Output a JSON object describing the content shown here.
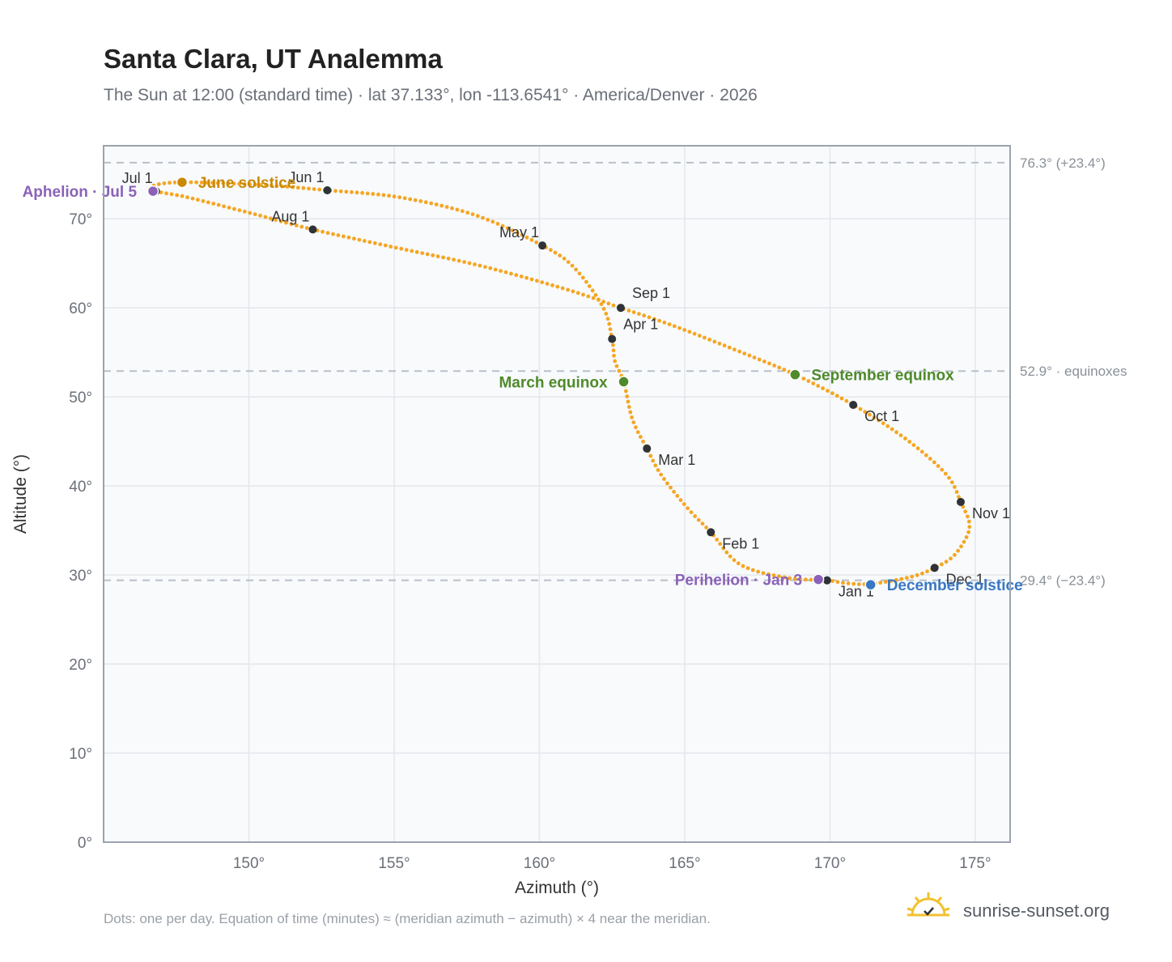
{
  "title": "Santa Clara, UT Analemma",
  "subtitle": "The Sun at 12:00 (standard time) · lat 37.133°, lon -113.6541° · America/Denver · 2026",
  "footnote": "Dots: one per day. Equation of time (minutes) ≈ (meridian azimuth − azimuth) × 4 near the meridian.",
  "brand": "sunrise-sunset.org",
  "colors": {
    "curve": "#f5a623",
    "month_dot": "#2f3237",
    "solstice_june": "#c98a06",
    "equinox": "#4f8a2b",
    "solstice_december": "#3a78c3",
    "apsis": "#8b62b8",
    "grid": "#e3e7ec",
    "plot_bg": "#f8fafc",
    "ref_line": "#b8c0c9"
  },
  "chart_data": {
    "type": "scatter",
    "xlabel": "Azimuth (°)",
    "ylabel": "Altitude (°)",
    "xlim": [
      145,
      176.2
    ],
    "ylim": [
      0,
      78.2
    ],
    "x_ticks": [
      {
        "value": 150,
        "label": "150°"
      },
      {
        "value": 155,
        "label": "155°"
      },
      {
        "value": 160,
        "label": "160°"
      },
      {
        "value": 165,
        "label": "165°"
      },
      {
        "value": 170,
        "label": "170°"
      },
      {
        "value": 175,
        "label": "175°"
      }
    ],
    "y_ticks": [
      {
        "value": 0,
        "label": "0°"
      },
      {
        "value": 10,
        "label": "10°"
      },
      {
        "value": 20,
        "label": "20°"
      },
      {
        "value": 30,
        "label": "30°"
      },
      {
        "value": 40,
        "label": "40°"
      },
      {
        "value": 50,
        "label": "50°"
      },
      {
        "value": 60,
        "label": "60°"
      },
      {
        "value": 70,
        "label": "70°"
      }
    ],
    "grid": true,
    "reference_lines": [
      {
        "value": 76.3,
        "label": "76.3° (+23.4°)"
      },
      {
        "value": 52.9,
        "label": "52.9° · equinoxes"
      },
      {
        "value": 29.4,
        "label": "29.4° (−23.4°)"
      }
    ],
    "path": [
      {
        "az": 169.9,
        "alt": 29.4
      },
      {
        "az": 168.5,
        "alt": 29.7
      },
      {
        "az": 166.9,
        "alt": 31.2
      },
      {
        "az": 165.9,
        "alt": 34.8
      },
      {
        "az": 165.1,
        "alt": 37.5
      },
      {
        "az": 164.2,
        "alt": 41.2
      },
      {
        "az": 163.7,
        "alt": 44.2
      },
      {
        "az": 163.2,
        "alt": 47.5
      },
      {
        "az": 162.9,
        "alt": 51.7
      },
      {
        "az": 162.6,
        "alt": 54.0
      },
      {
        "az": 162.5,
        "alt": 56.5
      },
      {
        "az": 162.2,
        "alt": 60.0
      },
      {
        "az": 161.2,
        "alt": 64.5
      },
      {
        "az": 160.1,
        "alt": 67.0
      },
      {
        "az": 157.8,
        "alt": 70.4
      },
      {
        "az": 155.2,
        "alt": 72.4
      },
      {
        "az": 152.7,
        "alt": 73.2
      },
      {
        "az": 150.4,
        "alt": 73.8
      },
      {
        "az": 147.7,
        "alt": 74.1
      },
      {
        "az": 146.7,
        "alt": 73.7
      },
      {
        "az": 146.8,
        "alt": 73.1
      },
      {
        "az": 147.9,
        "alt": 72.4
      },
      {
        "az": 150.1,
        "alt": 70.6
      },
      {
        "az": 152.2,
        "alt": 68.8
      },
      {
        "az": 155.0,
        "alt": 66.8
      },
      {
        "az": 158.0,
        "alt": 64.7
      },
      {
        "az": 161.0,
        "alt": 62.0
      },
      {
        "az": 162.8,
        "alt": 60.0
      },
      {
        "az": 164.6,
        "alt": 58.0
      },
      {
        "az": 166.8,
        "alt": 55.2
      },
      {
        "az": 168.8,
        "alt": 52.5
      },
      {
        "az": 170.8,
        "alt": 49.1
      },
      {
        "az": 172.6,
        "alt": 45.3
      },
      {
        "az": 174.0,
        "alt": 41.3
      },
      {
        "az": 174.5,
        "alt": 38.2
      },
      {
        "az": 174.8,
        "alt": 35.3
      },
      {
        "az": 174.3,
        "alt": 32.3
      },
      {
        "az": 173.6,
        "alt": 30.8
      },
      {
        "az": 172.8,
        "alt": 29.8
      },
      {
        "az": 171.4,
        "alt": 29.0
      },
      {
        "az": 170.5,
        "alt": 29.1
      },
      {
        "az": 169.9,
        "alt": 29.4
      }
    ],
    "month_markers": [
      {
        "label": "Jan 1",
        "az": 169.9,
        "alt": 29.4,
        "anchor": "below-right"
      },
      {
        "label": "Feb 1",
        "az": 165.9,
        "alt": 34.8,
        "anchor": "below-right"
      },
      {
        "label": "Mar 1",
        "az": 163.7,
        "alt": 44.2,
        "anchor": "below-right"
      },
      {
        "label": "Apr 1",
        "az": 162.5,
        "alt": 56.5,
        "anchor": "above-right"
      },
      {
        "label": "May 1",
        "az": 160.1,
        "alt": 67.0,
        "anchor": "above-left"
      },
      {
        "label": "Jun 1",
        "az": 152.7,
        "alt": 73.2,
        "anchor": "above-left"
      },
      {
        "label": "Jul 1",
        "az": 146.8,
        "alt": 73.1,
        "anchor": "above-left"
      },
      {
        "label": "Aug 1",
        "az": 152.2,
        "alt": 68.8,
        "anchor": "above-left"
      },
      {
        "label": "Sep 1",
        "az": 162.8,
        "alt": 60.0,
        "anchor": "above-right"
      },
      {
        "label": "Oct 1",
        "az": 170.8,
        "alt": 49.1,
        "anchor": "below-right"
      },
      {
        "label": "Nov 1",
        "az": 174.5,
        "alt": 38.2,
        "anchor": "below-right"
      },
      {
        "label": "Dec 1",
        "az": 173.6,
        "alt": 30.8,
        "anchor": "below-right"
      }
    ],
    "events": [
      {
        "label": "June solstice",
        "az": 147.7,
        "alt": 74.1,
        "color_key": "solstice_june",
        "side": "right"
      },
      {
        "label": "Aphelion · Jul 5",
        "az": 146.7,
        "alt": 73.1,
        "color_key": "apsis",
        "side": "left"
      },
      {
        "label": "March equinox",
        "az": 162.9,
        "alt": 51.7,
        "color_key": "equinox",
        "side": "left"
      },
      {
        "label": "September equinox",
        "az": 168.8,
        "alt": 52.5,
        "color_key": "equinox",
        "side": "right"
      },
      {
        "label": "Perihelion · Jan 3",
        "az": 169.6,
        "alt": 29.5,
        "color_key": "apsis",
        "side": "left"
      },
      {
        "label": "December solstice",
        "az": 171.4,
        "alt": 28.9,
        "color_key": "solstice_december",
        "side": "right"
      }
    ]
  }
}
